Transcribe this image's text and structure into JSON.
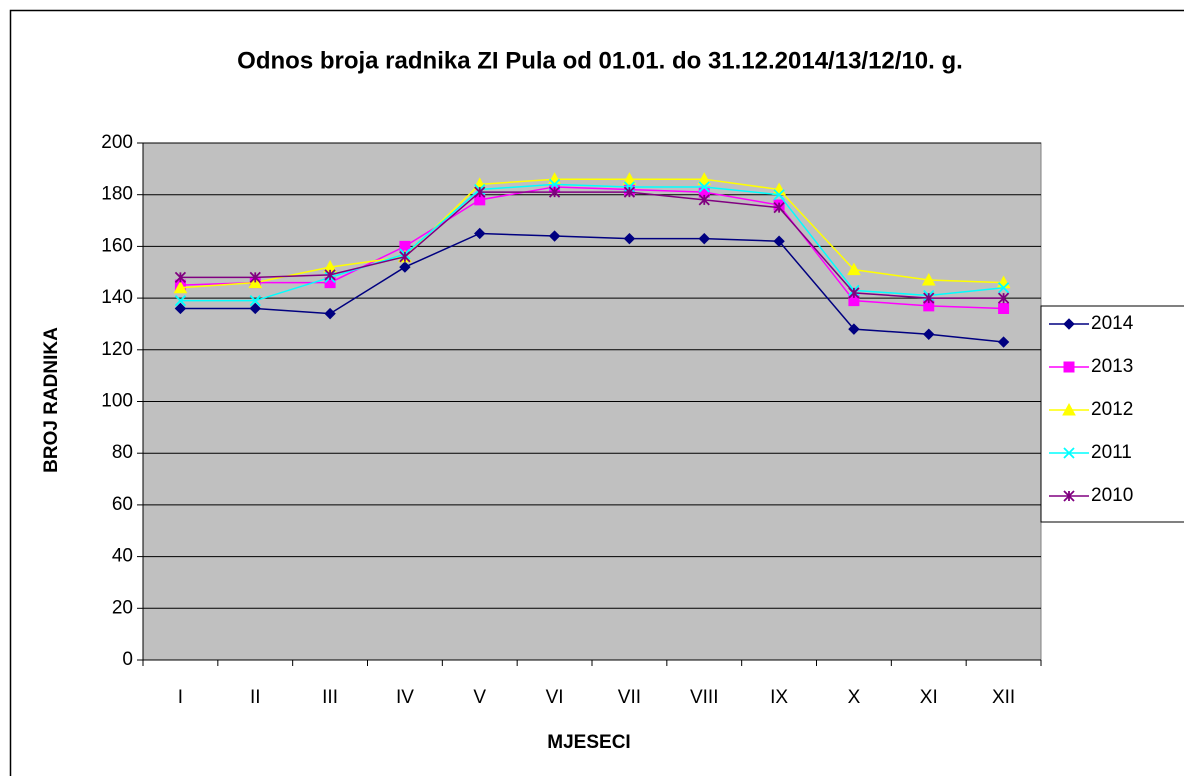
{
  "chart_data": {
    "type": "line",
    "title": "Odnos broja radnika ZI Pula od 01.01. do 31.12.2014/13/12/10. g.",
    "x_label": "MJESECI",
    "y_label": "BROJ RADNIKA",
    "categories": [
      "I",
      "II",
      "III",
      "IV",
      "V",
      "VI",
      "VII",
      "VIII",
      "IX",
      "X",
      "XI",
      "XII"
    ],
    "series": [
      {
        "name": "2014",
        "color": "#000080",
        "marker": "diamond",
        "values": [
          136,
          136,
          134,
          152,
          165,
          164,
          163,
          163,
          162,
          128,
          126,
          123
        ]
      },
      {
        "name": "2013",
        "color": "#ff00ff",
        "marker": "square",
        "values": [
          145,
          146,
          146,
          160,
          178,
          183,
          182,
          181,
          176,
          139,
          137,
          136
        ]
      },
      {
        "name": "2012",
        "color": "#ffff00",
        "marker": "triangle",
        "values": [
          144,
          146,
          152,
          156,
          184,
          186,
          186,
          186,
          182,
          151,
          147,
          146
        ]
      },
      {
        "name": "2011",
        "color": "#00ffff",
        "marker": "cross",
        "values": [
          139,
          139,
          148,
          157,
          182,
          184,
          183,
          183,
          180,
          143,
          141,
          144
        ]
      },
      {
        "name": "2010",
        "color": "#800080",
        "marker": "star",
        "values": [
          148,
          148,
          149,
          156,
          181,
          181,
          181,
          178,
          175,
          142,
          140,
          140
        ]
      }
    ],
    "ylim": [
      0,
      200
    ],
    "yticks": [
      0,
      20,
      40,
      60,
      80,
      100,
      120,
      140,
      160,
      180,
      200
    ],
    "grid": true,
    "legend": "right"
  }
}
